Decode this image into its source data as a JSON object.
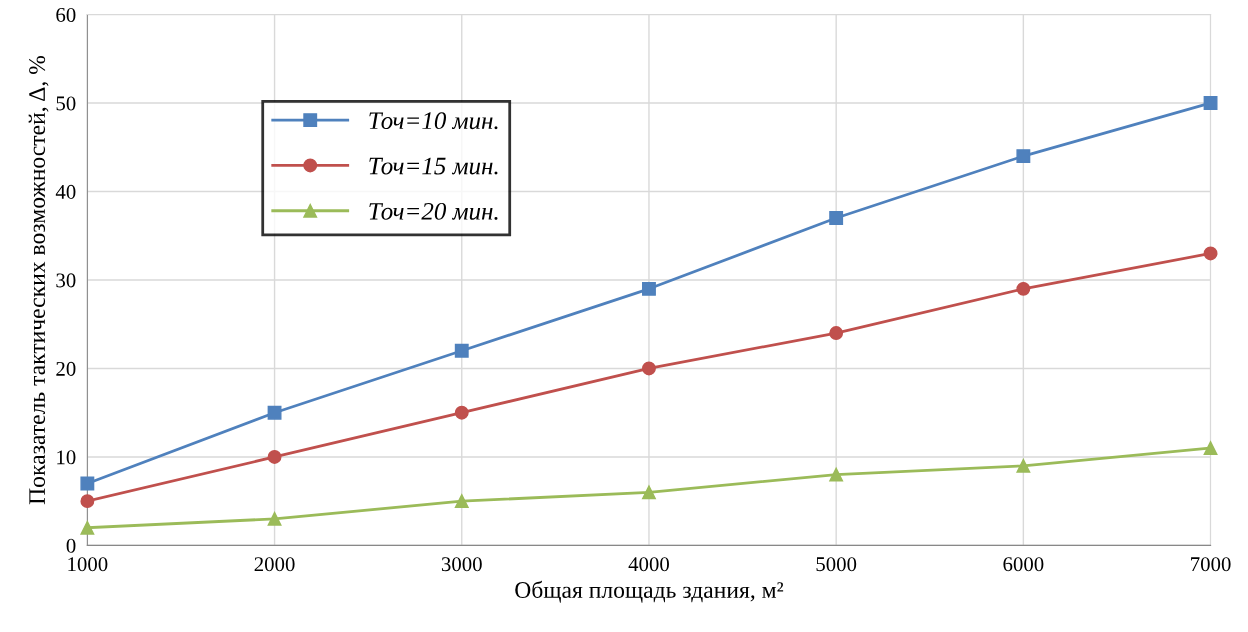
{
  "chart_data": {
    "type": "line",
    "xlabel": "Общая площадь здания, м²",
    "ylabel": "Показатель тактических возможностей, Δ, %",
    "x": [
      1000,
      2000,
      3000,
      4000,
      5000,
      6000,
      7000
    ],
    "series": [
      {
        "name": "Точ=10 мин.",
        "color": "#4f81bd",
        "marker": "square",
        "values": [
          7,
          15,
          22,
          29,
          37,
          44,
          50
        ]
      },
      {
        "name": "Точ=15 мин.",
        "color": "#c0504d",
        "marker": "circle",
        "values": [
          5,
          10,
          15,
          20,
          24,
          29,
          33
        ]
      },
      {
        "name": "Точ=20 мин.",
        "color": "#9bbb59",
        "marker": "triangle",
        "values": [
          2,
          3,
          5,
          6,
          8,
          9,
          11
        ]
      }
    ],
    "xlim": [
      1000,
      7000
    ],
    "xticks": [
      1000,
      2000,
      3000,
      4000,
      5000,
      6000,
      7000
    ],
    "ylim": [
      0,
      60
    ],
    "yticks": [
      0,
      10,
      20,
      30,
      40,
      50,
      60
    ],
    "grid": true,
    "legend": "top left",
    "line_style": "solid"
  }
}
